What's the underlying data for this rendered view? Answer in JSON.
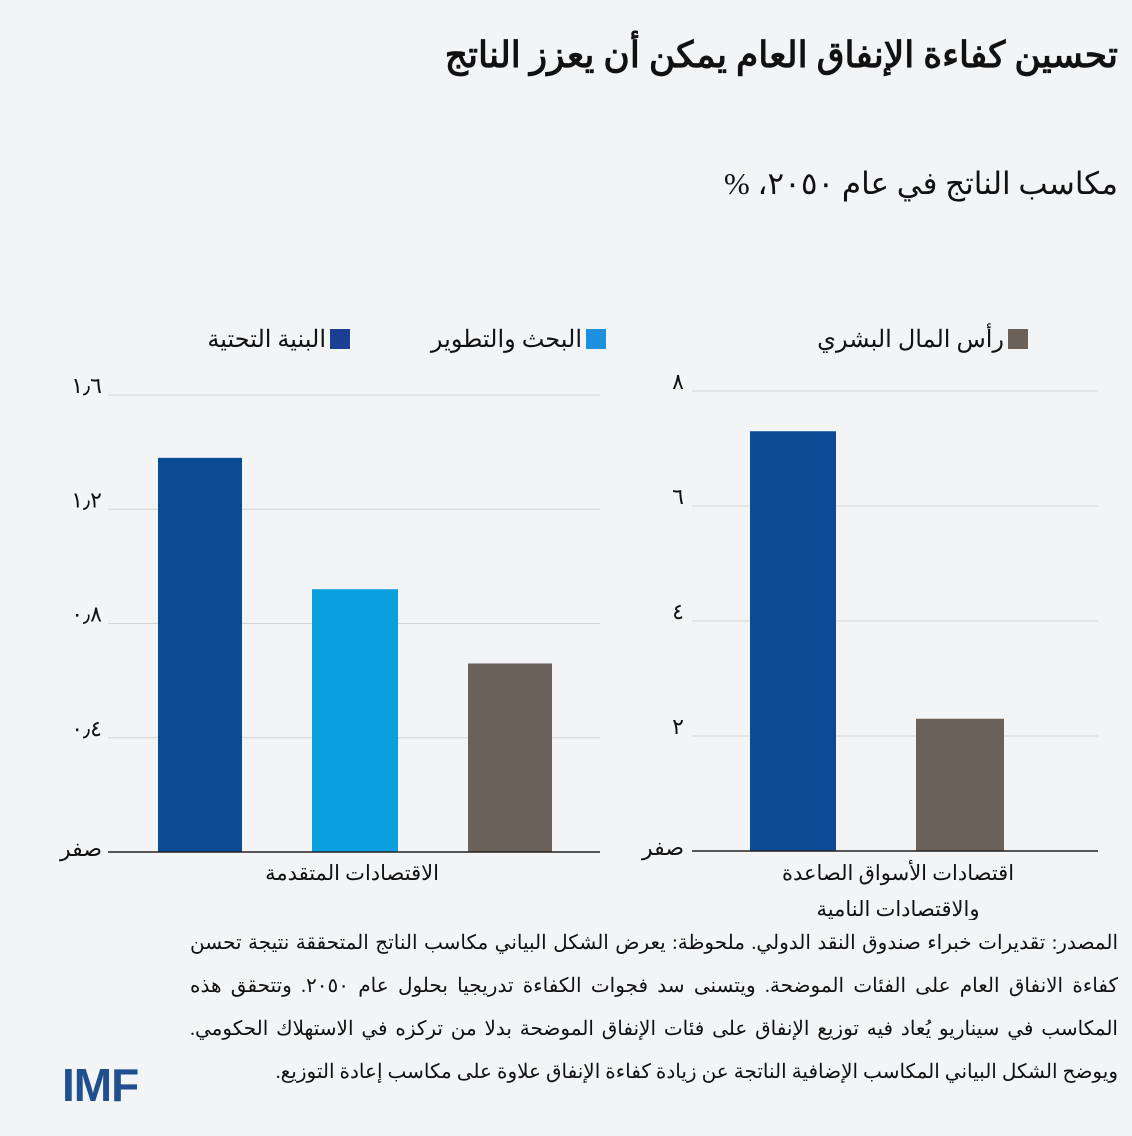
{
  "title": "تحسين كفاءة الإنفاق العام يمكن أن يعزز الناتج",
  "subtitle": "مكاسب الناتج في عام ٢٠٥٠، %",
  "legend": [
    {
      "label": "رأس المال البشري",
      "color": "#6b6158"
    },
    {
      "label": "البحث والتطوير",
      "color": "#1e90e0"
    },
    {
      "label": "البنية التحتية",
      "color": "#1b3f95"
    }
  ],
  "chart_data": [
    {
      "type": "bar",
      "xlabel": "الاقتصادات المتقدمة",
      "ylim": [
        0,
        1.6
      ],
      "ticks": [
        0,
        0.4,
        0.8,
        1.2,
        1.6
      ],
      "tick_labels": [
        "صفر",
        "٠٫٤",
        "٠٫٨",
        "١٫٢",
        "١٫٦"
      ],
      "grid": true,
      "series": [
        {
          "name": "البنية التحتية",
          "value": 1.38,
          "color": "#0b4a95"
        },
        {
          "name": "البحث والتطوير",
          "value": 0.92,
          "color": "#0aa0e0"
        },
        {
          "name": "رأس المال البشري",
          "value": 0.66,
          "color": "#6b6158"
        }
      ]
    },
    {
      "type": "bar",
      "xlabel_lines": [
        "اقتصادات الأسواق الصاعدة",
        "والاقتصادات النامية"
      ],
      "ylim": [
        0,
        8
      ],
      "ticks": [
        0,
        2,
        4,
        6,
        8
      ],
      "tick_labels": [
        "صفر",
        "٢",
        "٤",
        "٦",
        "٨"
      ],
      "grid": true,
      "series": [
        {
          "name": "البنية التحتية",
          "value": 7.3,
          "color": "#0b4a95"
        },
        {
          "name": "رأس المال البشري",
          "value": 2.3,
          "color": "#6b6158"
        }
      ]
    }
  ],
  "notes": "المصدر: تقديرات خبراء صندوق النقد الدولي. ملحوظة: يعرض الشكل البياني مكاسب الناتج المتحققة نتيجة تحسن كفاءة الانفاق العام على الفئات الموضحة. ويتسنى سد فجوات الكفاءة تدريجيا بحلول عام ٢٠٥٠. وتتحقق هذه المكاسب في سيناريو يُعاد فيه توزيع الإنفاق على فئات الإنفاق الموضحة بدلا من تركزه في الاستهلاك الحكومي. ويوضح الشكل البياني المكاسب الإضافية الناتجة عن زيادة كفاءة الإنفاق علاوة على مكاسب إعادة التوزيع.",
  "logo": "IMF"
}
